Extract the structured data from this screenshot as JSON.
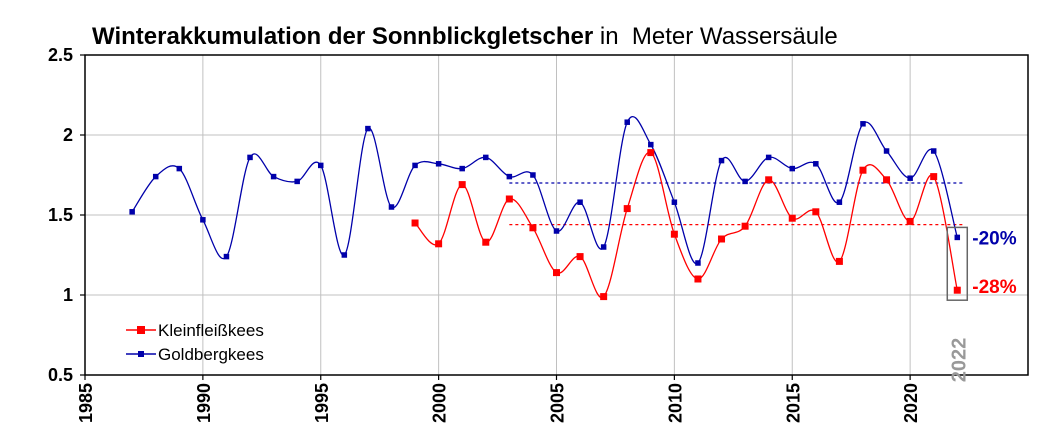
{
  "chart_data": {
    "type": "line",
    "title_bold": "Winterakkumulation der Sonnblickgletscher",
    "title_rest": " in  Meter Wassersäule",
    "xlim": [
      1985,
      2025
    ],
    "ylim": [
      0.5,
      2.5
    ],
    "xticks": [
      1985,
      1990,
      1995,
      2000,
      2005,
      2010,
      2015,
      2020
    ],
    "xtick_labels": [
      "1985",
      "1990",
      "1995",
      "2000",
      "2005",
      "2010",
      "2015",
      "2020"
    ],
    "yticks": [
      0.5,
      1,
      1.5,
      2,
      2.5
    ],
    "ytick_labels": [
      "0.5",
      "1",
      "1.5",
      "2",
      "2.5"
    ],
    "grid": true,
    "legend_position": "bottom-left",
    "series": [
      {
        "name": "Kleinfleißkees",
        "color": "#ff0000",
        "x": [
          1999,
          2000,
          2001,
          2002,
          2003,
          2004,
          2005,
          2006,
          2007,
          2008,
          2009,
          2010,
          2011,
          2012,
          2013,
          2014,
          2015,
          2016,
          2017,
          2018,
          2019,
          2020,
          2021,
          2022
        ],
        "values": [
          1.45,
          1.32,
          1.69,
          1.33,
          1.6,
          1.42,
          1.14,
          1.24,
          0.99,
          1.54,
          1.89,
          1.38,
          1.1,
          1.35,
          1.43,
          1.72,
          1.48,
          1.52,
          1.21,
          1.78,
          1.72,
          1.46,
          1.74,
          1.03
        ],
        "mean_line": {
          "value": 1.44,
          "x_start": 2003,
          "x_end": 2021
        },
        "change_label": "-28%"
      },
      {
        "name": "Goldbergkees",
        "color": "#0000aa",
        "x": [
          1987,
          1988,
          1989,
          1990,
          1991,
          1992,
          1993,
          1994,
          1995,
          1996,
          1997,
          1998,
          1999,
          2000,
          2001,
          2002,
          2003,
          2004,
          2005,
          2006,
          2007,
          2008,
          2009,
          2010,
          2011,
          2012,
          2013,
          2014,
          2015,
          2016,
          2017,
          2018,
          2019,
          2020,
          2021,
          2022
        ],
        "values": [
          1.52,
          1.74,
          1.79,
          1.47,
          1.24,
          1.86,
          1.74,
          1.71,
          1.81,
          1.25,
          2.04,
          1.55,
          1.81,
          1.82,
          1.79,
          1.86,
          1.74,
          1.75,
          1.4,
          1.58,
          1.3,
          2.08,
          1.94,
          1.58,
          1.2,
          1.84,
          1.71,
          1.86,
          1.79,
          1.82,
          1.58,
          2.07,
          1.9,
          1.73,
          1.9,
          1.36
        ],
        "mean_line": {
          "value": 1.7,
          "x_start": 2003,
          "x_end": 2021
        },
        "change_label": "-20%"
      }
    ],
    "highlight": {
      "x": 2022,
      "label": "2022"
    }
  }
}
